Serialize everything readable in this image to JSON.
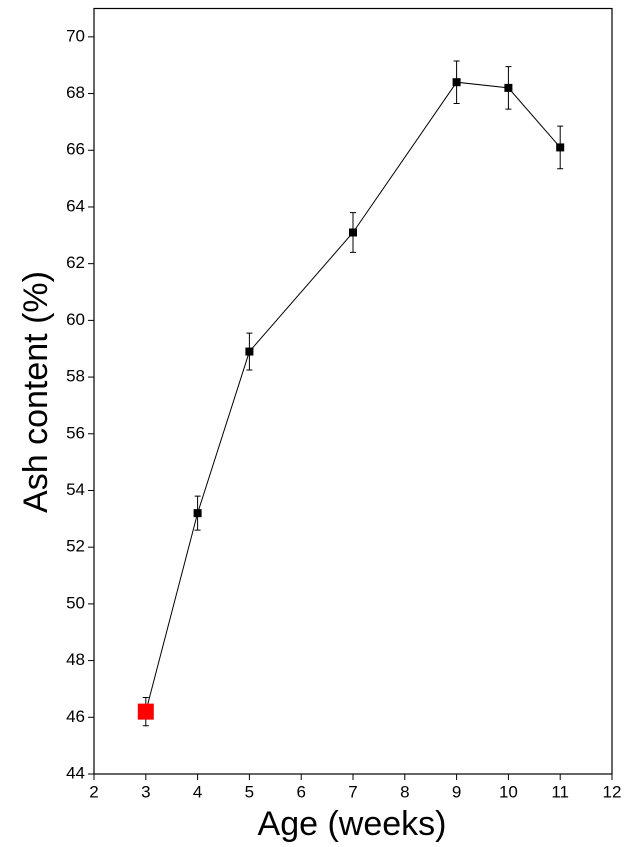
{
  "chart_data": {
    "type": "line",
    "xlabel": "Age (weeks)",
    "ylabel": "Ash content (%)",
    "x": [
      3,
      4,
      5,
      7,
      9,
      10,
      11
    ],
    "series": [
      {
        "color": "#000000",
        "values": [
          46.2,
          53.2,
          58.9,
          63.1,
          68.4,
          68.2,
          66.1
        ],
        "errors": [
          0.5,
          0.6,
          0.65,
          0.7,
          0.75,
          0.75,
          0.75
        ],
        "point_colors": [
          "#ff0000",
          "#000000",
          "#000000",
          "#000000",
          "#000000",
          "#000000",
          "#000000"
        ]
      }
    ],
    "xlim": [
      2,
      12
    ],
    "xticks": [
      2,
      3,
      4,
      5,
      6,
      7,
      8,
      9,
      10,
      11,
      12
    ],
    "ylim": [
      44,
      71
    ],
    "yticks": [
      44,
      46,
      48,
      50,
      52,
      54,
      56,
      58,
      60,
      62,
      64,
      66,
      68,
      70
    ],
    "grid": false
  }
}
